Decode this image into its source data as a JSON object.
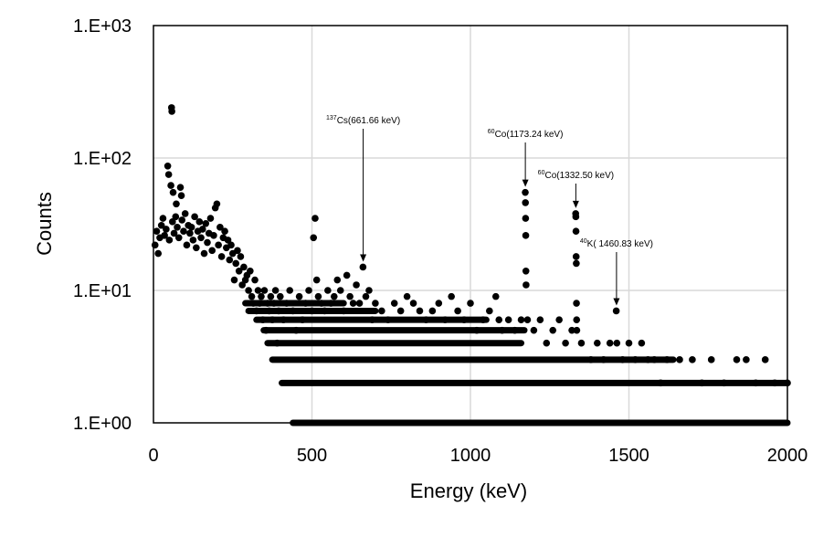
{
  "chart_data": {
    "type": "scatter",
    "title": "",
    "xlabel": "Energy (keV)",
    "ylabel": "Counts",
    "xlim": [
      0,
      2000
    ],
    "ylim": [
      1,
      1000
    ],
    "y_scale": "log",
    "grid": true,
    "legend": "none",
    "marker_color": "#000000",
    "grid_color": "#d9d9d9",
    "x_ticks": [
      0,
      500,
      1000,
      1500,
      2000
    ],
    "x_tick_labels": [
      "0",
      "500",
      "1000",
      "1500",
      "2000"
    ],
    "y_ticks": [
      1,
      10,
      100,
      1000
    ],
    "y_tick_labels": [
      "1.E+00",
      "1.E+01",
      "1.E+02",
      "1.E+03"
    ],
    "annotations": [
      {
        "sup": "137",
        "text": "Cs(661.66 keV)",
        "x": 661.66,
        "y": 15
      },
      {
        "sup": "60",
        "text": "Co(1173.24 keV)",
        "x": 1173.24,
        "y": 55
      },
      {
        "sup": "60",
        "text": "Co(1332.50 keV)",
        "x": 1332.5,
        "y": 38
      },
      {
        "sup": "40",
        "text": "K( 1460.83 keV)",
        "x": 1460.83,
        "y": 7
      }
    ],
    "series": [
      {
        "values": [
          [
            5,
            22
          ],
          [
            10,
            28
          ],
          [
            15,
            19
          ],
          [
            20,
            25
          ],
          [
            25,
            31
          ],
          [
            30,
            35
          ],
          [
            35,
            26
          ],
          [
            40,
            29
          ],
          [
            45,
            87
          ],
          [
            48,
            75
          ],
          [
            50,
            24
          ],
          [
            55,
            62
          ],
          [
            57,
            240
          ],
          [
            58,
            225
          ],
          [
            60,
            33
          ],
          [
            62,
            55
          ],
          [
            65,
            27
          ],
          [
            70,
            36
          ],
          [
            72,
            45
          ],
          [
            75,
            30
          ],
          [
            80,
            25
          ],
          [
            85,
            60
          ],
          [
            88,
            52
          ],
          [
            90,
            34
          ],
          [
            95,
            28
          ],
          [
            100,
            38
          ],
          [
            105,
            22
          ],
          [
            110,
            31
          ],
          [
            115,
            27
          ],
          [
            120,
            30
          ],
          [
            125,
            24
          ],
          [
            130,
            36
          ],
          [
            135,
            21
          ],
          [
            140,
            28
          ],
          [
            145,
            33
          ],
          [
            150,
            25
          ],
          [
            155,
            29
          ],
          [
            160,
            19
          ],
          [
            165,
            32
          ],
          [
            170,
            23
          ],
          [
            175,
            27
          ],
          [
            180,
            35
          ],
          [
            185,
            20
          ],
          [
            190,
            26
          ],
          [
            195,
            42
          ],
          [
            200,
            45
          ],
          [
            205,
            22
          ],
          [
            210,
            30
          ],
          [
            215,
            18
          ],
          [
            220,
            25
          ],
          [
            225,
            28
          ],
          [
            230,
            21
          ],
          [
            235,
            24
          ],
          [
            240,
            17
          ],
          [
            245,
            22
          ],
          [
            250,
            19
          ],
          [
            255,
            12
          ],
          [
            260,
            16
          ],
          [
            265,
            20
          ],
          [
            270,
            14
          ],
          [
            275,
            18
          ],
          [
            280,
            11
          ],
          [
            285,
            15
          ],
          [
            290,
            12
          ],
          [
            295,
            13
          ],
          [
            300,
            10
          ],
          [
            305,
            14
          ],
          [
            310,
            9
          ],
          [
            315,
            8
          ],
          [
            320,
            12
          ],
          [
            325,
            7
          ],
          [
            330,
            10
          ],
          [
            335,
            8
          ],
          [
            340,
            9
          ],
          [
            345,
            6
          ],
          [
            350,
            10
          ],
          [
            355,
            5
          ],
          [
            360,
            8
          ],
          [
            365,
            7
          ],
          [
            370,
            9
          ],
          [
            375,
            6
          ],
          [
            380,
            8
          ],
          [
            385,
            10
          ],
          [
            390,
            4
          ],
          [
            395,
            7
          ],
          [
            400,
            9
          ],
          [
            410,
            6
          ],
          [
            420,
            8
          ],
          [
            430,
            10
          ],
          [
            440,
            7
          ],
          [
            450,
            5
          ],
          [
            460,
            9
          ],
          [
            470,
            6
          ],
          [
            480,
            8
          ],
          [
            490,
            10
          ],
          [
            500,
            7
          ],
          [
            505,
            25
          ],
          [
            510,
            35
          ],
          [
            515,
            12
          ],
          [
            520,
            9
          ],
          [
            530,
            8
          ],
          [
            540,
            7
          ],
          [
            550,
            10
          ],
          [
            560,
            8
          ],
          [
            570,
            9
          ],
          [
            580,
            12
          ],
          [
            590,
            10
          ],
          [
            600,
            7
          ],
          [
            610,
            13
          ],
          [
            620,
            9
          ],
          [
            630,
            8
          ],
          [
            640,
            11
          ],
          [
            650,
            8
          ],
          [
            661,
            15
          ],
          [
            670,
            9
          ],
          [
            680,
            10
          ],
          [
            690,
            6
          ],
          [
            700,
            8
          ],
          [
            720,
            7
          ],
          [
            740,
            6
          ],
          [
            760,
            8
          ],
          [
            780,
            7
          ],
          [
            800,
            9
          ],
          [
            820,
            8
          ],
          [
            840,
            7
          ],
          [
            860,
            6
          ],
          [
            880,
            7
          ],
          [
            900,
            8
          ],
          [
            920,
            6
          ],
          [
            940,
            9
          ],
          [
            960,
            7
          ],
          [
            980,
            6
          ],
          [
            1000,
            8
          ],
          [
            1020,
            5
          ],
          [
            1040,
            6
          ],
          [
            1060,
            7
          ],
          [
            1080,
            9
          ],
          [
            1090,
            6
          ],
          [
            1100,
            5
          ],
          [
            1120,
            6
          ],
          [
            1140,
            5
          ],
          [
            1160,
            6
          ],
          [
            1173,
            55
          ],
          [
            1173.5,
            46
          ],
          [
            1174,
            35
          ],
          [
            1174.5,
            26
          ],
          [
            1175,
            14
          ],
          [
            1175.5,
            11
          ],
          [
            1180,
            6
          ],
          [
            1200,
            5
          ],
          [
            1220,
            6
          ],
          [
            1240,
            4
          ],
          [
            1260,
            5
          ],
          [
            1280,
            6
          ],
          [
            1300,
            4
          ],
          [
            1320,
            5
          ],
          [
            1332,
            38
          ],
          [
            1332.5,
            36
          ],
          [
            1333,
            28
          ],
          [
            1333.5,
            18
          ],
          [
            1334,
            16
          ],
          [
            1334.5,
            8
          ],
          [
            1335,
            6
          ],
          [
            1335.5,
            5
          ],
          [
            1350,
            4
          ],
          [
            1380,
            3
          ],
          [
            1400,
            4
          ],
          [
            1420,
            3
          ],
          [
            1440,
            4
          ],
          [
            1460,
            7
          ],
          [
            1462,
            4
          ],
          [
            1480,
            3
          ],
          [
            1500,
            4
          ],
          [
            1520,
            3
          ],
          [
            1540,
            4
          ],
          [
            1560,
            3
          ],
          [
            1580,
            3
          ],
          [
            1600,
            2
          ],
          [
            1620,
            3
          ],
          [
            1660,
            3
          ],
          [
            1700,
            3
          ],
          [
            1730,
            2
          ],
          [
            1760,
            3
          ],
          [
            1800,
            2
          ],
          [
            1840,
            3
          ],
          [
            1870,
            3
          ],
          [
            1900,
            2
          ],
          [
            1930,
            3
          ],
          [
            1960,
            2
          ],
          [
            2000,
            2
          ]
        ],
        "bands": [
          {
            "y": 1,
            "from": 440,
            "to": 2000
          },
          {
            "y": 2,
            "from": 405,
            "to": 2000
          },
          {
            "y": 3,
            "from": 375,
            "to": 1640
          },
          {
            "y": 4,
            "from": 360,
            "to": 1160
          },
          {
            "y": 5,
            "from": 348,
            "to": 1170
          },
          {
            "y": 6,
            "from": 325,
            "to": 1050
          },
          {
            "y": 7,
            "from": 300,
            "to": 700
          },
          {
            "y": 8,
            "from": 290,
            "to": 600
          }
        ]
      }
    ]
  }
}
